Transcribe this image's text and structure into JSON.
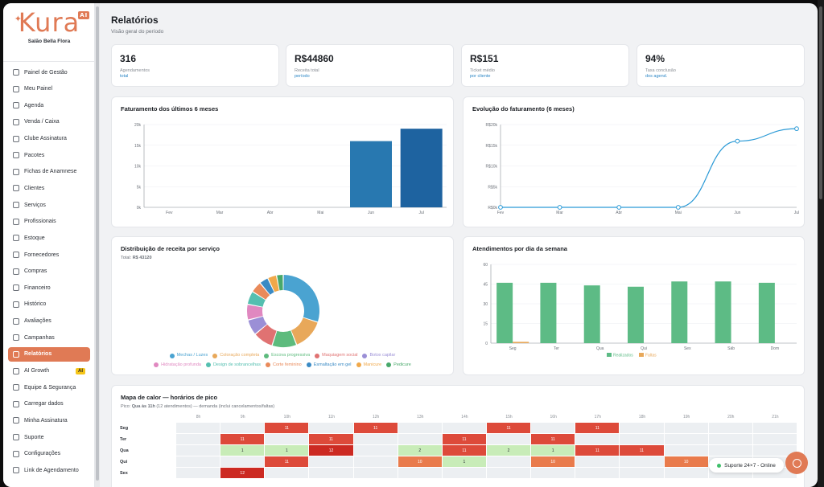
{
  "brand": {
    "name": "Kura",
    "ai_badge": "AI",
    "salon": "Salão Bella Flora"
  },
  "sidebar": {
    "items": [
      {
        "label": "Painel de Gestão",
        "icon": "home-icon"
      },
      {
        "label": "Meu Painel",
        "icon": "user-icon"
      },
      {
        "label": "Agenda",
        "icon": "calendar-icon"
      },
      {
        "label": "Venda / Caixa",
        "icon": "cart-icon"
      },
      {
        "label": "Clube Assinatura",
        "icon": "card-icon"
      },
      {
        "label": "Pacotes",
        "icon": "package-icon"
      },
      {
        "label": "Fichas de Anamnese",
        "icon": "file-icon"
      },
      {
        "label": "Clientes",
        "icon": "users-icon"
      },
      {
        "label": "Serviços",
        "icon": "briefcase-icon"
      },
      {
        "label": "Profissionais",
        "icon": "scissors-icon"
      },
      {
        "label": "Estoque",
        "icon": "box-icon"
      },
      {
        "label": "Fornecedores",
        "icon": "truck-icon"
      },
      {
        "label": "Compras",
        "icon": "bag-icon"
      },
      {
        "label": "Financeiro",
        "icon": "dollar-icon"
      },
      {
        "label": "Histórico",
        "icon": "history-icon"
      },
      {
        "label": "Avaliações",
        "icon": "star-icon"
      },
      {
        "label": "Campanhas",
        "icon": "megaphone-icon"
      },
      {
        "label": "Relatórios",
        "icon": "chart-icon",
        "active": true
      },
      {
        "label": "AI Growth",
        "icon": "sparkle-icon",
        "badge": "AI"
      },
      {
        "label": "Equipe & Segurança",
        "icon": "shield-icon"
      },
      {
        "label": "Carregar dados",
        "icon": "upload-icon"
      },
      {
        "label": "Minha Assinatura",
        "icon": "credit-card-icon"
      },
      {
        "label": "Suporte",
        "icon": "help-icon"
      },
      {
        "label": "Configurações",
        "icon": "gear-icon"
      },
      {
        "label": "Link de Agendamento",
        "icon": "globe-icon"
      }
    ]
  },
  "header": {
    "title": "Relatórios",
    "subtitle": "Visão geral do período"
  },
  "kpis": [
    {
      "value": "316",
      "label": "Agendamentos",
      "link": "total"
    },
    {
      "value": "R$44860",
      "label": "Receita total",
      "link": "período"
    },
    {
      "value": "R$151",
      "label": "Ticket médio",
      "link": "por cliente"
    },
    {
      "value": "94%",
      "label": "Taxa conclusão",
      "link": "dos agend."
    }
  ],
  "cards": {
    "revenue_bars": "Faturamento dos últimos 6 meses",
    "revenue_line": "Evolução do faturamento (6 meses)",
    "donut": "Distribuição de receita por serviço",
    "donut_total_label": "Total:",
    "donut_total": "R$ 43120",
    "weekday": "Atendimentos por dia da semana",
    "heatmap": "Mapa de calor — horários de pico",
    "heatmap_sub_prefix": "Pico:",
    "heatmap_peak": "Qua às 11h",
    "heatmap_sub_rest": "(12 atendimentos) — demanda (inclui cancelamentos/faltas)"
  },
  "chart_data": [
    {
      "type": "bar",
      "title": "Faturamento dos últimos 6 meses",
      "categories": [
        "Fev",
        "Mar",
        "Abr",
        "Mai",
        "Jun",
        "Jul"
      ],
      "values": [
        0,
        0,
        0,
        0,
        16000,
        19000
      ],
      "yticks": [
        "0k",
        "5k",
        "10k",
        "15k",
        "20k"
      ],
      "ylim": [
        0,
        20000
      ],
      "colors": [
        "#2b86c5",
        "#2b86c5",
        "#2b86c5",
        "#2b86c5",
        "#2878b0",
        "#1e63a0"
      ]
    },
    {
      "type": "line",
      "title": "Evolução do faturamento (6 meses)",
      "categories": [
        "Fev",
        "Mar",
        "Abr",
        "Mai",
        "Jun",
        "Jul"
      ],
      "values": [
        0,
        0,
        0,
        0,
        16000,
        19000
      ],
      "yticks": [
        "R$0k",
        "R$5k",
        "R$10k",
        "R$15k",
        "R$20k"
      ],
      "ylim": [
        0,
        20000
      ],
      "color": "#2b9ad6"
    },
    {
      "type": "pie",
      "title": "Distribuição de receita por serviço",
      "labels": [
        "Mechas / Luzes",
        "Coloração completa",
        "Escova progressiva",
        "Maquiagem social",
        "Botox capilar",
        "Hidratação profunda",
        "Design de sobrancelhas",
        "Corte feminino",
        "Esmaltação em gel",
        "Manicure",
        "Pedicure"
      ],
      "values": [
        30,
        14,
        11,
        9,
        7,
        7,
        6,
        5,
        4,
        4,
        3
      ],
      "colors": [
        "#4aa3d1",
        "#e8a85a",
        "#5dbb7d",
        "#e07272",
        "#9b8fd6",
        "#e088c0",
        "#55bfb0",
        "#e98a5a",
        "#3a8ac4",
        "#f0a84a",
        "#48a86a"
      ]
    },
    {
      "type": "bar",
      "title": "Atendimentos por dia da semana",
      "categories": [
        "Seg",
        "Ter",
        "Qua",
        "Qui",
        "Sex",
        "Sáb",
        "Dom"
      ],
      "series": [
        {
          "name": "Realizados",
          "values": [
            46,
            46,
            44,
            43,
            47,
            47,
            46
          ],
          "color": "#5dbb85"
        },
        {
          "name": "Faltas",
          "values": [
            1,
            0,
            0,
            0,
            0,
            0,
            0
          ],
          "color": "#e8a85a"
        }
      ],
      "yticks": [
        "0",
        "15",
        "30",
        "45",
        "60"
      ],
      "ylim": [
        0,
        60
      ]
    },
    {
      "type": "heatmap",
      "title": "Mapa de calor — horários de pico",
      "columns": [
        "8h",
        "9h",
        "10h",
        "11h",
        "12h",
        "13h",
        "14h",
        "15h",
        "16h",
        "17h",
        "18h",
        "19h",
        "20h",
        "21h"
      ],
      "rows": [
        {
          "day": "Seg",
          "cells": [
            "",
            "",
            "11",
            "",
            "11",
            "",
            "",
            "11",
            "",
            "11",
            "",
            "",
            "",
            ""
          ]
        },
        {
          "day": "Ter",
          "cells": [
            "",
            "11",
            "",
            "11",
            "",
            "",
            "11",
            "",
            "11",
            "",
            "",
            "",
            "",
            ""
          ]
        },
        {
          "day": "Qua",
          "cells": [
            "",
            "1",
            "1",
            "12",
            "",
            "2",
            "11",
            "2",
            "1",
            "11",
            "11",
            "",
            "",
            ""
          ]
        },
        {
          "day": "Qui",
          "cells": [
            "",
            "",
            "11",
            "",
            "",
            "10",
            "1",
            "",
            "10",
            "",
            "",
            "10",
            "",
            ""
          ]
        },
        {
          "day": "Sex",
          "cells": [
            "",
            "12",
            "",
            "",
            "",
            "",
            "",
            "",
            "",
            "",
            "",
            "",
            "",
            ""
          ]
        }
      ],
      "colors": {
        "high": "#dd4a3a",
        "peak": "#cc2a22",
        "mid": "#e97b4c",
        "low": "#c8ecb8",
        "empty": "#eceff2"
      }
    }
  ],
  "support": {
    "label": "Suporte 24×7 - Online"
  }
}
